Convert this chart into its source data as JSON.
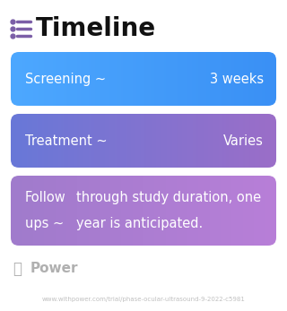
{
  "title": "Timeline",
  "title_fontsize": 20,
  "title_color": "#111111",
  "icon_color": "#7B5EA7",
  "background_color": "#ffffff",
  "rows": [
    {
      "label": "Screening ~",
      "value": "3 weeks",
      "bg_color_left": "#4da8ff",
      "bg_color_right": "#3a90f5",
      "text_color": "#ffffff",
      "multiline": false
    },
    {
      "label": "Treatment ~",
      "value": "Varies",
      "bg_color_left": "#6878d8",
      "bg_color_right": "#9b6ec8",
      "text_color": "#ffffff",
      "multiline": false
    },
    {
      "label_line1": "Follow",
      "label_line2": "ups ~",
      "value_line1": "through study duration, one",
      "value_line2": "year is anticipated.",
      "bg_color_left": "#a07bcc",
      "bg_color_right": "#b87fd8",
      "text_color": "#ffffff",
      "multiline": true
    }
  ],
  "watermark_text": "Power",
  "watermark_color": "#b0b0b0",
  "url_text": "www.withpower.com/trial/phase-ocular-ultrasound-9-2022-c5981",
  "url_color": "#c0c0c0",
  "url_fontsize": 5.0,
  "figw": 3.2,
  "figh": 3.47,
  "dpi": 100
}
